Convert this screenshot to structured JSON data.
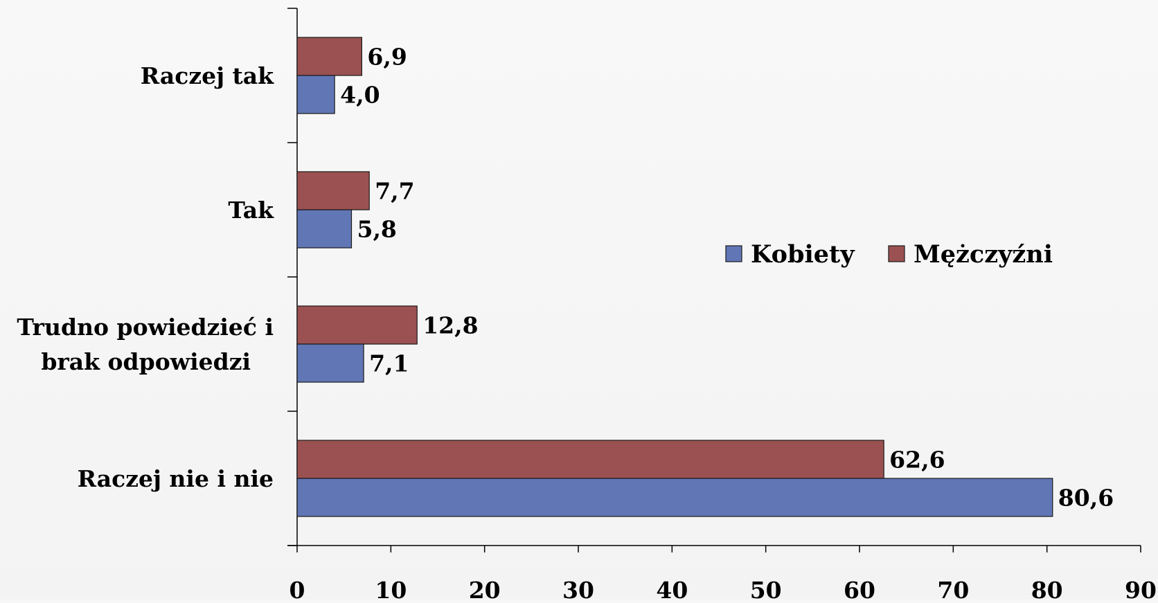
{
  "chart_data": {
    "type": "bar",
    "orientation": "horizontal",
    "categories": [
      "Raczej tak",
      "Tak",
      "Trudno powiedzieć i brak odpowiedzi",
      "Raczej nie i nie"
    ],
    "category_lines": [
      [
        "Raczej tak"
      ],
      [
        "Tak"
      ],
      [
        "Trudno powiedzieć i",
        "brak odpowiedzi"
      ],
      [
        "Raczej nie i nie"
      ]
    ],
    "series": [
      {
        "name": "Mężczyźni",
        "color": "#9b5151",
        "values": [
          6.9,
          7.7,
          12.8,
          62.6
        ],
        "labels": [
          "6,9",
          "7,7",
          "12,8",
          "62,6"
        ]
      },
      {
        "name": "Kobiety",
        "color": "#6176b5",
        "values": [
          4.0,
          5.8,
          7.1,
          80.6
        ],
        "labels": [
          "4,0",
          "5,8",
          "7,1",
          "80,6"
        ]
      }
    ],
    "legend": [
      {
        "name": "Kobiety",
        "color": "#6176b5"
      },
      {
        "name": "Mężczyźni",
        "color": "#9b5151"
      }
    ],
    "legend_position": "right-center",
    "xlim": [
      0,
      90
    ],
    "x_ticks": [
      0,
      10,
      20,
      30,
      40,
      50,
      60,
      70,
      80,
      90
    ],
    "x_tick_labels": [
      "0",
      "10",
      "20",
      "30",
      "40",
      "50",
      "60",
      "70",
      "80",
      "90"
    ],
    "grid": false,
    "title": "",
    "xlabel": "",
    "ylabel": ""
  }
}
